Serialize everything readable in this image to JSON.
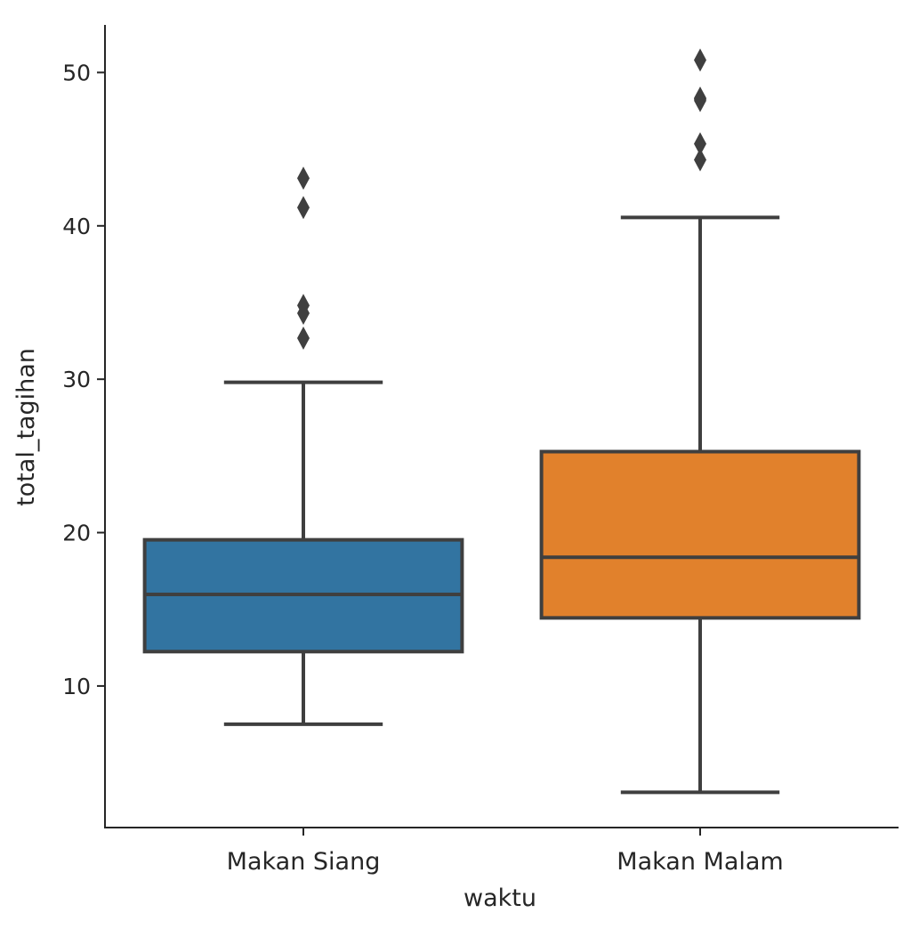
{
  "chart_data": {
    "type": "box",
    "xlabel": "waktu",
    "ylabel": "total_tagihan",
    "categories": [
      "Makan Siang",
      "Makan Malam"
    ],
    "ylim": [
      0.77,
      53.1
    ],
    "yticks": [
      10,
      20,
      30,
      40,
      50
    ],
    "grid": false,
    "colors": [
      "#3274a1",
      "#e1812c"
    ],
    "line_color": "#3f3f3f",
    "boxes": [
      {
        "category": "Makan Siang",
        "whisker_low": 7.51,
        "q1": 12.24,
        "median": 15.97,
        "q3": 19.53,
        "whisker_high": 29.8,
        "outliers": [
          32.68,
          34.3,
          34.81,
          41.19,
          43.11
        ]
      },
      {
        "category": "Makan Malam",
        "whisker_low": 3.07,
        "q1": 14.44,
        "median": 18.39,
        "q3": 25.28,
        "whisker_high": 40.55,
        "outliers": [
          44.3,
          45.35,
          48.17,
          48.27,
          48.33,
          50.81
        ]
      }
    ]
  }
}
